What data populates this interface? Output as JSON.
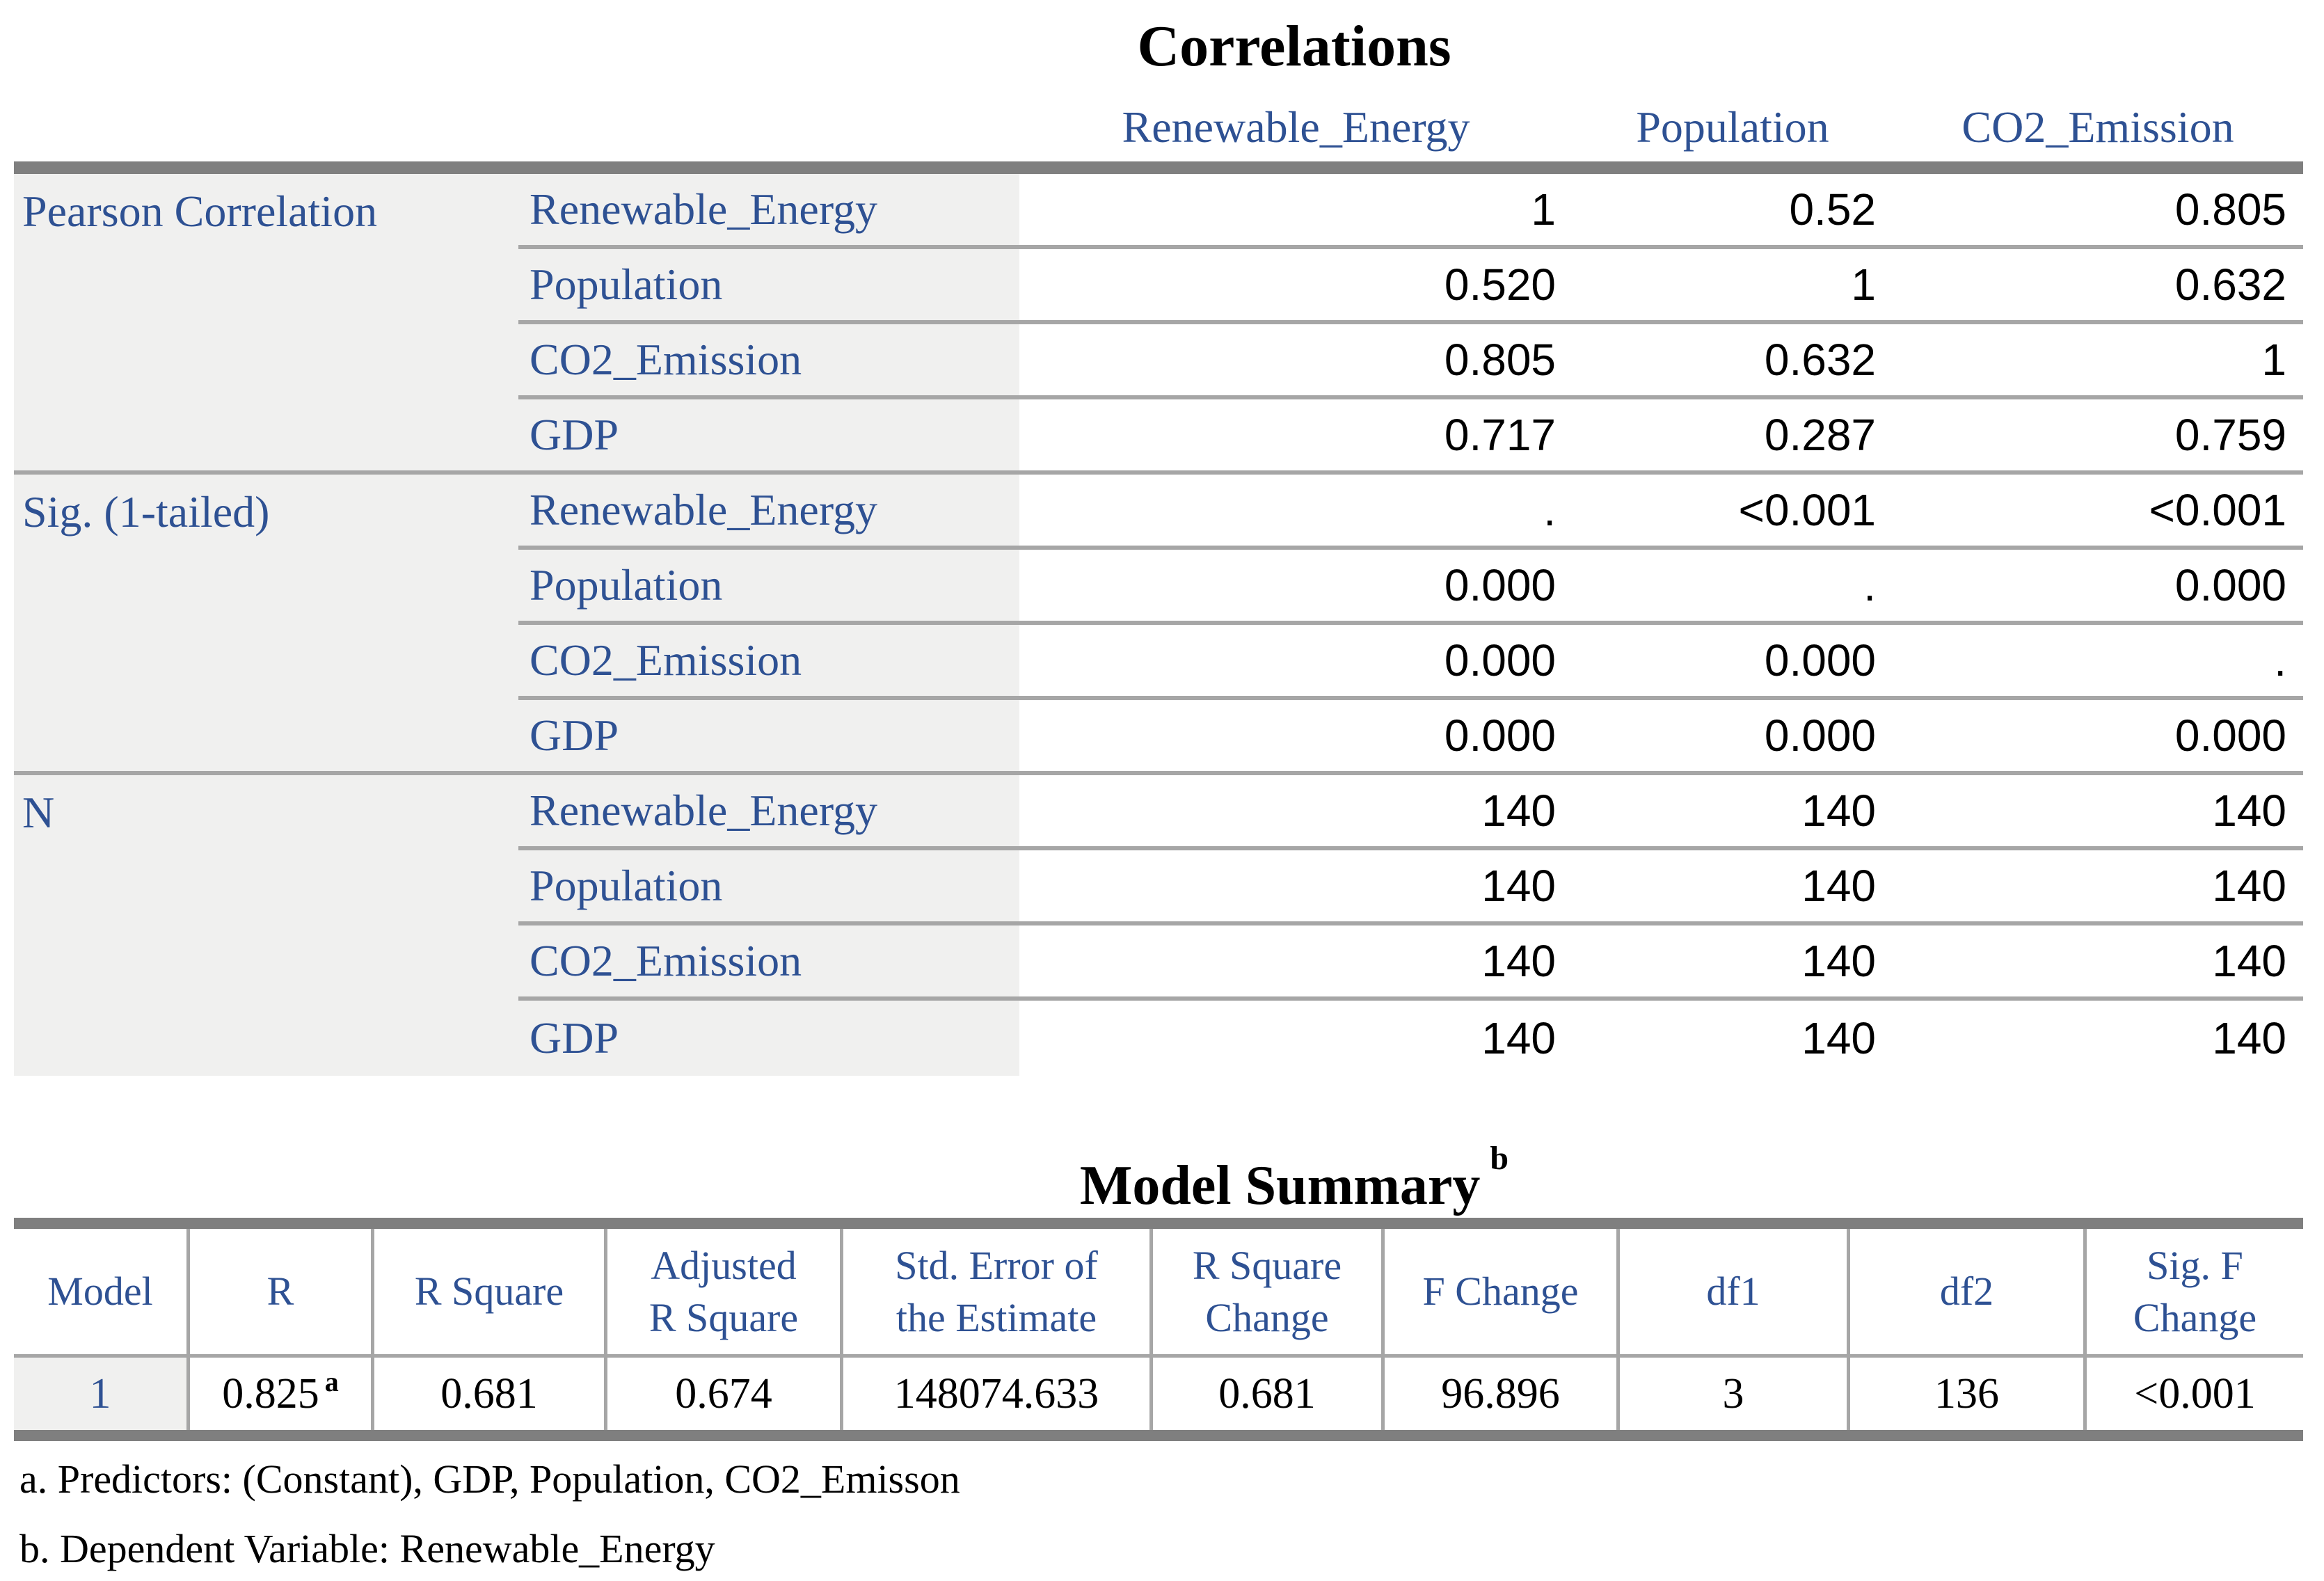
{
  "correlations": {
    "title": "Correlations",
    "col_headers": [
      "Renewable_Energy",
      "Population",
      "CO2_Emission"
    ],
    "sections": [
      {
        "label": "Pearson Correlation",
        "rows": [
          {
            "variable": "Renewable_Energy",
            "values": [
              "1",
              "0.52",
              "0.805"
            ]
          },
          {
            "variable": "Population",
            "values": [
              "0.520",
              "1",
              "0.632"
            ]
          },
          {
            "variable": "CO2_Emission",
            "values": [
              "0.805",
              "0.632",
              "1"
            ]
          },
          {
            "variable": "GDP",
            "values": [
              "0.717",
              "0.287",
              "0.759"
            ]
          }
        ]
      },
      {
        "label": "Sig. (1-tailed)",
        "rows": [
          {
            "variable": "Renewable_Energy",
            "values": [
              ".",
              "<0.001",
              "<0.001"
            ]
          },
          {
            "variable": "Population",
            "values": [
              "0.000",
              ".",
              "0.000"
            ]
          },
          {
            "variable": "CO2_Emission",
            "values": [
              "0.000",
              "0.000",
              "."
            ]
          },
          {
            "variable": "GDP",
            "values": [
              "0.000",
              "0.000",
              "0.000"
            ]
          }
        ]
      },
      {
        "label": "N",
        "rows": [
          {
            "variable": "Renewable_Energy",
            "values": [
              "140",
              "140",
              "140"
            ]
          },
          {
            "variable": "Population",
            "values": [
              "140",
              "140",
              "140"
            ]
          },
          {
            "variable": "CO2_Emission",
            "values": [
              "140",
              "140",
              "140"
            ]
          },
          {
            "variable": "GDP",
            "values": [
              "140",
              "140",
              "140"
            ]
          }
        ]
      }
    ]
  },
  "model_summary": {
    "title": "Model Summary",
    "title_sup": "b",
    "col_headers": [
      "Model",
      "R",
      "R Square",
      "Adjusted\nR Square",
      "Std. Error of\nthe Estimate",
      "R Square\nChange",
      "F Change",
      "df1",
      "df2",
      "Sig. F\nChange"
    ],
    "row": {
      "model": "1",
      "r": "0.825",
      "r_sup": "a",
      "values": [
        "0.681",
        "0.674",
        "148074.633",
        "0.681",
        "96.896",
        "3",
        "136",
        "<0.001"
      ]
    }
  },
  "footnotes": [
    "a. Predictors: (Constant), GDP, Population, CO2_Emisson",
    "b. Dependent Variable: Renewable_Energy"
  ],
  "colors": {
    "accent_blue": "#2e5193",
    "bar_gray": "#7f7f7f",
    "line_gray": "#a6a6a6",
    "label_bg": "#f0f0ef"
  }
}
